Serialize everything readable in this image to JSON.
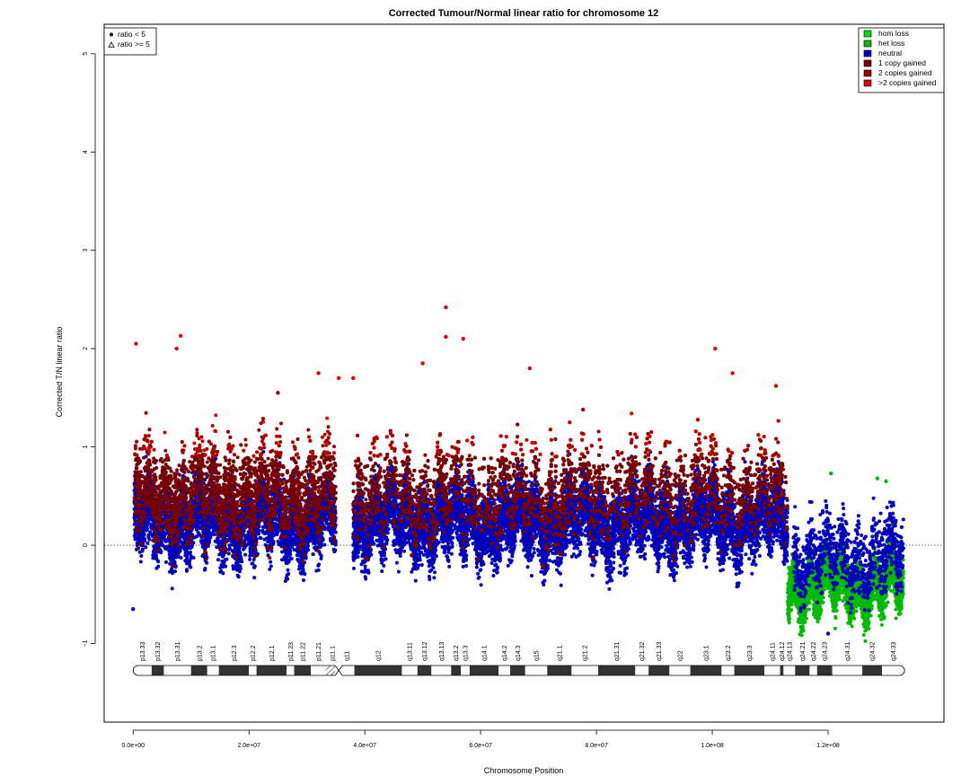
{
  "chart_data": {
    "type": "scatter",
    "title": "Corrected Tumour/Normal linear ratio for chromosome  12",
    "xlabel": "Chromosome Position",
    "ylabel": "Corrected T/N linear ratio",
    "xlim": [
      -5000000,
      140000000
    ],
    "ylim": [
      -1.8,
      5.3
    ],
    "x_ticks": [
      0,
      20000000,
      40000000,
      60000000,
      80000000,
      100000000,
      120000000
    ],
    "x_tick_labels": [
      "0.0e+00",
      "2.0e+07",
      "4.0e+07",
      "6.0e+07",
      "8.0e+07",
      "1.0e+08",
      "1.2e+08"
    ],
    "y_ticks": [
      -1,
      0,
      1,
      2,
      3,
      4,
      5
    ],
    "y_tick_labels": [
      "−1",
      "0",
      "1",
      "2",
      "3",
      "4",
      "5"
    ],
    "reference_line": {
      "y": 0,
      "style": "dotted"
    },
    "shape_legend": {
      "position": "top-left",
      "entries": [
        {
          "label": "ratio < 5",
          "symbol": "filled-circle"
        },
        {
          "label": "ratio >= 5",
          "symbol": "open-triangle"
        }
      ]
    },
    "color_legend": {
      "position": "top-right",
      "entries": [
        {
          "label": "hom loss",
          "color": "#00dd00"
        },
        {
          "label": "het loss",
          "color": "#00bb00"
        },
        {
          "label": "neutral",
          "color": "#0000bb"
        },
        {
          "label": "1 copy gained",
          "color": "#770000"
        },
        {
          "label": "2 copies gained",
          "color": "#990000"
        },
        {
          "label": ">2 copies gained",
          "color": "#dd0000"
        }
      ]
    },
    "segments": [
      {
        "start": 200000,
        "end": 35000000,
        "state": "neutral",
        "median": 0.25,
        "spread": 0.35,
        "density": 0.9
      },
      {
        "start": 200000,
        "end": 35000000,
        "state": "1 copy gained",
        "median": 0.55,
        "spread": 0.45,
        "density": 0.55
      },
      {
        "start": 38000000,
        "end": 113000000,
        "state": "neutral",
        "median": 0.25,
        "spread": 0.35,
        "density": 0.9
      },
      {
        "start": 38000000,
        "end": 113000000,
        "state": "1 copy gained",
        "median": 0.55,
        "spread": 0.45,
        "density": 0.55
      },
      {
        "start": 113000000,
        "end": 133000000,
        "state": "het loss",
        "median": -0.4,
        "spread": 0.25,
        "density": 1.0
      },
      {
        "start": 114000000,
        "end": 133000000,
        "state": "neutral",
        "median": -0.1,
        "spread": 0.35,
        "density": 0.35
      }
    ],
    "peaks": [
      {
        "x": 500000,
        "y": 2.05
      },
      {
        "x": 7500000,
        "y": 2.0
      },
      {
        "x": 8200000,
        "y": 2.13
      },
      {
        "x": 54000000,
        "y": 2.42
      },
      {
        "x": 54000000,
        "y": 2.12
      },
      {
        "x": 57000000,
        "y": 2.1
      },
      {
        "x": 100500000,
        "y": 2.0
      },
      {
        "x": 50000000,
        "y": 1.85
      },
      {
        "x": 35500000,
        "y": 1.7
      },
      {
        "x": 38000000,
        "y": 1.7
      },
      {
        "x": 32000000,
        "y": 1.75
      },
      {
        "x": 68500000,
        "y": 1.8
      },
      {
        "x": 25000000,
        "y": 1.55
      },
      {
        "x": 103500000,
        "y": 1.75
      },
      {
        "x": 111000000,
        "y": 1.62
      },
      {
        "x": 0,
        "y": -0.65
      },
      {
        "x": 120000000,
        "y": -0.9
      },
      {
        "x": 130000000,
        "y": 0.65
      },
      {
        "x": 128500000,
        "y": 0.68
      },
      {
        "x": 120500000,
        "y": 0.73
      }
    ],
    "ideogram": {
      "centromere": 35500000,
      "bands": [
        {
          "name": "p13.33",
          "start": 0,
          "end": 3200000,
          "stain": "gneg"
        },
        {
          "name": "p13.32",
          "start": 3200000,
          "end": 5300000,
          "stain": "gpos"
        },
        {
          "name": "p13.31",
          "start": 5300000,
          "end": 10000000,
          "stain": "gneg"
        },
        {
          "name": "p13.2",
          "start": 10000000,
          "end": 12800000,
          "stain": "gpos"
        },
        {
          "name": "p13.1",
          "start": 12800000,
          "end": 14800000,
          "stain": "gneg"
        },
        {
          "name": "p12.3",
          "start": 14800000,
          "end": 20000000,
          "stain": "gpos"
        },
        {
          "name": "p12.2",
          "start": 20000000,
          "end": 21300000,
          "stain": "gneg"
        },
        {
          "name": "p12.1",
          "start": 21300000,
          "end": 26500000,
          "stain": "gpos"
        },
        {
          "name": "p11.23",
          "start": 26500000,
          "end": 27800000,
          "stain": "gneg"
        },
        {
          "name": "p11.22",
          "start": 27800000,
          "end": 30700000,
          "stain": "gpos"
        },
        {
          "name": "p11.21",
          "start": 30700000,
          "end": 33300000,
          "stain": "gneg"
        },
        {
          "name": "p11.1",
          "start": 33300000,
          "end": 35500000,
          "stain": "stalk"
        },
        {
          "name": "q11",
          "start": 35500000,
          "end": 38200000,
          "stain": "acen"
        },
        {
          "name": "q12",
          "start": 38200000,
          "end": 46400000,
          "stain": "gpos"
        },
        {
          "name": "q13.11",
          "start": 46400000,
          "end": 49100000,
          "stain": "gneg"
        },
        {
          "name": "q13.12",
          "start": 49100000,
          "end": 51500000,
          "stain": "gpos"
        },
        {
          "name": "q13.13",
          "start": 51500000,
          "end": 54900000,
          "stain": "gneg"
        },
        {
          "name": "q13.2",
          "start": 54900000,
          "end": 56600000,
          "stain": "gpos"
        },
        {
          "name": "q13.3",
          "start": 56600000,
          "end": 58100000,
          "stain": "gneg"
        },
        {
          "name": "q14.1",
          "start": 58100000,
          "end": 63100000,
          "stain": "gpos"
        },
        {
          "name": "q14.2",
          "start": 63100000,
          "end": 65100000,
          "stain": "gneg"
        },
        {
          "name": "q14.3",
          "start": 65100000,
          "end": 67700000,
          "stain": "gpos"
        },
        {
          "name": "q15",
          "start": 67700000,
          "end": 71500000,
          "stain": "gneg"
        },
        {
          "name": "q21.1",
          "start": 71500000,
          "end": 75700000,
          "stain": "gpos"
        },
        {
          "name": "q21.2",
          "start": 75700000,
          "end": 80300000,
          "stain": "gneg"
        },
        {
          "name": "q21.31",
          "start": 80300000,
          "end": 86700000,
          "stain": "gpos"
        },
        {
          "name": "q21.32",
          "start": 86700000,
          "end": 89000000,
          "stain": "gneg"
        },
        {
          "name": "q21.33",
          "start": 89000000,
          "end": 92600000,
          "stain": "gpos"
        },
        {
          "name": "q22",
          "start": 92600000,
          "end": 96200000,
          "stain": "gneg"
        },
        {
          "name": "q23.1",
          "start": 96200000,
          "end": 101600000,
          "stain": "gpos"
        },
        {
          "name": "q23.2",
          "start": 101600000,
          "end": 103800000,
          "stain": "gneg"
        },
        {
          "name": "q23.3",
          "start": 103800000,
          "end": 109000000,
          "stain": "gpos"
        },
        {
          "name": "q24.11",
          "start": 109000000,
          "end": 111700000,
          "stain": "gneg"
        },
        {
          "name": "q24.12",
          "start": 111700000,
          "end": 112300000,
          "stain": "gpos"
        },
        {
          "name": "q24.13",
          "start": 112300000,
          "end": 114300000,
          "stain": "gneg"
        },
        {
          "name": "q24.21",
          "start": 114300000,
          "end": 116800000,
          "stain": "gpos"
        },
        {
          "name": "q24.22",
          "start": 116800000,
          "end": 118100000,
          "stain": "gneg"
        },
        {
          "name": "q24.23",
          "start": 118100000,
          "end": 120700000,
          "stain": "gpos"
        },
        {
          "name": "q24.31",
          "start": 120700000,
          "end": 125900000,
          "stain": "gneg"
        },
        {
          "name": "q24.32",
          "start": 125900000,
          "end": 129300000,
          "stain": "gpos"
        },
        {
          "name": "q24.33",
          "start": 129300000,
          "end": 133200000,
          "stain": "gneg"
        }
      ]
    }
  }
}
